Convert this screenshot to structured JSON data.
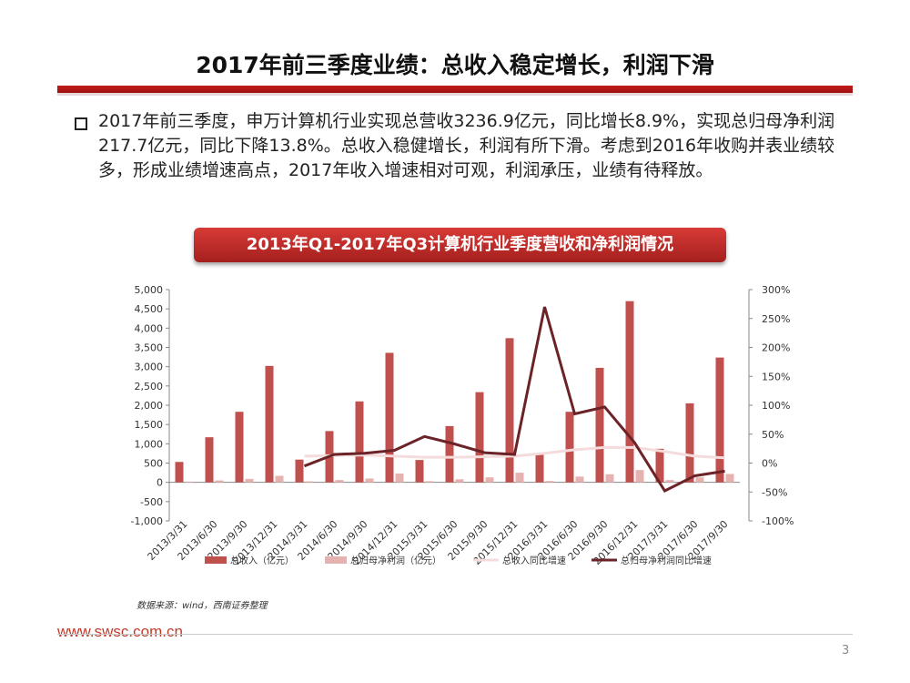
{
  "slide": {
    "title": "2017年前三季度业绩：总收入稳定增长，利润下滑",
    "paragraph": "2017年前三季度，申万计算机行业实现总营收3236.9亿元，同比增长8.9%，实现总归母净利润217.7亿元，同比下降13.8%。总收入稳健增长，利润有所下滑。考虑到2016年收购并表业绩较多，形成业绩增速高点，2017年收入增速相对可观，利润承压，业绩有待释放。",
    "banner": "2013年Q1-2017年Q3计算机行业季度营收和净利润情况",
    "source": "数据来源：wind，西南证券整理",
    "url": "www.swsc.com.cn",
    "page": "3"
  },
  "colors": {
    "revenue": "#c0504d",
    "profit": "#e6b2b0",
    "revenue_growth": "#f4dcdc",
    "profit_growth": "#6b2327",
    "accent": "#c21a1a"
  },
  "chart_data": {
    "type": "bar",
    "categories": [
      "2013/3/31",
      "2013/6/30",
      "2013/9/30",
      "2013/12/31",
      "2014/3/31",
      "2014/6/30",
      "2014/9/30",
      "2014/12/31",
      "2015/3/31",
      "2015/6/30",
      "2015/9/30",
      "2015/12/31",
      "2016/3/31",
      "2016/6/30",
      "2016/9/30",
      "2016/12/31",
      "2017/3/31",
      "2017/6/30",
      "2017/9/30"
    ],
    "series": [
      {
        "name": "总收入（亿元）",
        "axis": "left",
        "kind": "bar",
        "values": [
          530,
          1170,
          1830,
          3020,
          590,
          1330,
          2100,
          3360,
          580,
          1460,
          2340,
          3740,
          720,
          1830,
          2970,
          4700,
          870,
          2050,
          3237
        ]
      },
      {
        "name": "总归母净利润（亿元）",
        "axis": "left",
        "kind": "bar",
        "values": [
          20,
          50,
          90,
          170,
          25,
          60,
          100,
          230,
          30,
          80,
          130,
          250,
          35,
          150,
          210,
          320,
          60,
          130,
          218
        ]
      },
      {
        "name": "总收入同比增速",
        "axis": "right",
        "kind": "line",
        "values": [
          null,
          null,
          null,
          null,
          12,
          13,
          14,
          12,
          10,
          10,
          11,
          12,
          17,
          23,
          27,
          27,
          20,
          12,
          9
        ]
      },
      {
        "name": "总归母净利润同比增速",
        "axis": "right",
        "kind": "line",
        "values": [
          null,
          null,
          null,
          null,
          -5,
          15,
          17,
          22,
          46,
          33,
          18,
          15,
          270,
          85,
          97,
          35,
          -48,
          -22,
          -14
        ]
      }
    ],
    "y_left": {
      "min": -1000,
      "max": 5000,
      "ticks": [
        "5,000",
        "4,500",
        "4,000",
        "3,500",
        "3,000",
        "2,500",
        "2,000",
        "1,500",
        "1,000",
        "500",
        "0",
        "-500",
        "-1,000"
      ]
    },
    "y_right": {
      "min": -100,
      "max": 300,
      "ticks": [
        "300%",
        "250%",
        "200%",
        "150%",
        "100%",
        "50%",
        "0%",
        "-50%",
        "-100%"
      ]
    },
    "legend": [
      "总收入（亿元）",
      "总归母净利润（亿元）",
      "总收入同比增速",
      "总归母净利润同比增速"
    ]
  }
}
